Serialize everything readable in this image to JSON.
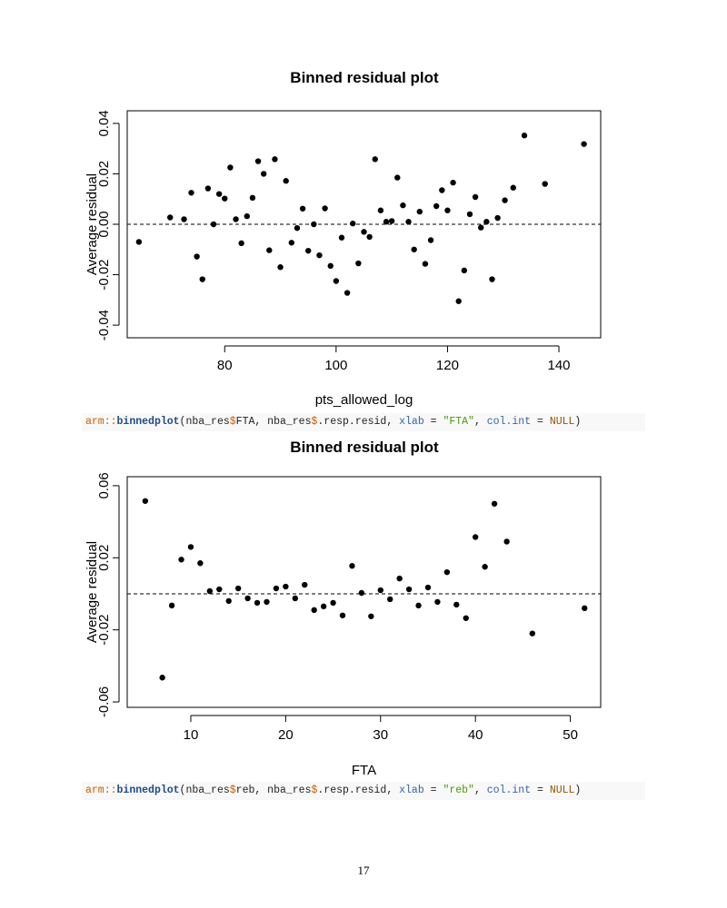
{
  "chart_data": [
    {
      "type": "scatter",
      "title": "Binned residual plot",
      "xlabel": "pts_allowed_log",
      "ylabel": "Average residual",
      "xlim": [
        62.5,
        147.5
      ],
      "ylim": [
        -0.045,
        0.045
      ],
      "xticks": [
        80,
        100,
        120,
        140
      ],
      "yticks": [
        -0.04,
        -0.02,
        0.0,
        0.02,
        0.04
      ],
      "ytick_labels": [
        "-0.04",
        "-0.02",
        "0.00",
        "0.02",
        "0.04"
      ],
      "reference_line": 0,
      "grid": false,
      "x": [
        64.6,
        70.2,
        72.7,
        74.0,
        75.0,
        76.0,
        77.0,
        78.0,
        79.0,
        80.0,
        81.0,
        82.0,
        83.0,
        84.0,
        85.0,
        86.0,
        87.0,
        88.0,
        89.0,
        90.0,
        91.0,
        92.0,
        93.0,
        94.0,
        95.0,
        96.0,
        97.0,
        98.0,
        99.0,
        100.0,
        101.0,
        102.0,
        103.0,
        104.0,
        105.0,
        106.0,
        107.0,
        108.0,
        109.0,
        110.0,
        111.0,
        112.0,
        113.0,
        114.0,
        115.0,
        116.0,
        117.0,
        118.0,
        119.0,
        120.0,
        121.0,
        122.0,
        123.0,
        124.0,
        125.0,
        126.0,
        127.0,
        128.0,
        129.0,
        130.3,
        131.8,
        133.8,
        137.5,
        144.5
      ],
      "y": [
        -0.007,
        0.0027,
        0.002,
        0.0125,
        -0.0128,
        -0.0218,
        0.0142,
        0.0,
        0.012,
        0.0102,
        0.0225,
        0.002,
        -0.0075,
        0.0032,
        0.0105,
        0.025,
        0.02,
        -0.0103,
        0.0258,
        -0.017,
        0.0172,
        -0.0073,
        -0.0015,
        0.0062,
        -0.0105,
        0.0,
        -0.0123,
        0.0063,
        -0.0165,
        -0.0225,
        -0.0053,
        -0.0272,
        0.0003,
        -0.0155,
        -0.003,
        -0.005,
        0.0258,
        0.0055,
        0.001,
        0.0013,
        0.0185,
        0.0075,
        0.001,
        -0.01,
        0.005,
        -0.0157,
        -0.0063,
        0.0072,
        0.0135,
        0.0055,
        0.0165,
        -0.0305,
        -0.0183,
        0.004,
        0.0108,
        -0.0013,
        0.001,
        -0.0218,
        0.0025,
        0.0095,
        0.0145,
        0.0352,
        0.016,
        0.0318
      ]
    },
    {
      "type": "scatter",
      "title": "Binned residual plot",
      "xlabel": "FTA",
      "ylabel": "Average residual",
      "xlim": [
        3.3,
        53.2
      ],
      "ylim": [
        -0.063,
        0.065
      ],
      "xticks": [
        10,
        20,
        30,
        40,
        50
      ],
      "yticks": [
        -0.06,
        -0.02,
        0.02,
        0.06
      ],
      "ytick_labels": [
        "-0.06",
        "-0.02",
        "0.02",
        "0.06"
      ],
      "reference_line": 0,
      "grid": false,
      "x": [
        5.2,
        7.0,
        8.0,
        9.0,
        10.0,
        11.0,
        12.0,
        13.0,
        14.0,
        15.0,
        16.0,
        17.0,
        18.0,
        19.0,
        20.0,
        21.0,
        22.0,
        23.0,
        24.0,
        25.0,
        26.0,
        27.0,
        28.0,
        29.0,
        30.0,
        31.0,
        32.0,
        33.0,
        34.0,
        35.0,
        36.0,
        37.0,
        38.0,
        39.0,
        40.0,
        41.0,
        42.0,
        43.3,
        46.0,
        51.5
      ],
      "y": [
        0.0515,
        -0.0465,
        -0.0065,
        0.019,
        0.026,
        0.017,
        0.0015,
        0.0025,
        -0.004,
        0.003,
        -0.0025,
        -0.005,
        -0.0045,
        0.003,
        0.004,
        -0.0025,
        0.005,
        -0.009,
        -0.007,
        -0.005,
        -0.012,
        0.0155,
        0.0005,
        -0.0125,
        0.002,
        -0.003,
        0.0085,
        0.0025,
        -0.0065,
        0.0035,
        -0.0045,
        0.012,
        -0.006,
        -0.0135,
        0.0315,
        0.015,
        0.05,
        0.029,
        -0.022,
        -0.008
      ]
    }
  ],
  "code_lines": [
    {
      "ns": "arm",
      "sep": "::",
      "fn": "binnedplot",
      "p1": "(nba_res",
      "d1": "$",
      "p2": "FTA, nba_res",
      "d2": "$",
      "p3": ".resp.resid, ",
      "a1": "xlab",
      "eq1": " = ",
      "s1": "\"FTA\"",
      "comma": ", ",
      "a2": "col.int",
      "eq2": " = ",
      "n1": "NULL",
      "close": ")"
    },
    {
      "ns": "arm",
      "sep": "::",
      "fn": "binnedplot",
      "p1": "(nba_res",
      "d1": "$",
      "p2": "reb, nba_res",
      "d2": "$",
      "p3": ".resp.resid, ",
      "a1": "xlab",
      "eq1": " = ",
      "s1": "\"reb\"",
      "comma": ", ",
      "a2": "col.int",
      "eq2": " = ",
      "n1": "NULL",
      "close": ")"
    }
  ],
  "page_number": "17"
}
